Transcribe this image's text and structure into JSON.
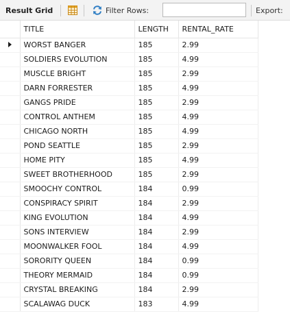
{
  "toolbar": {
    "result_grid_label": "Result Grid",
    "grid_icon": "grid-layout-icon",
    "refresh_icon": "refresh-icon",
    "filter_label": "Filter Rows:",
    "filter_value": "",
    "export_label": "Export:",
    "accent_color": "#e0a020"
  },
  "grid": {
    "columns": [
      "TITLE",
      "LENGTH",
      "RENTAL_RATE"
    ],
    "current_row_index": 0,
    "rows": [
      [
        "WORST BANGER",
        "185",
        "2.99"
      ],
      [
        "SOLDIERS EVOLUTION",
        "185",
        "4.99"
      ],
      [
        "MUSCLE BRIGHT",
        "185",
        "2.99"
      ],
      [
        "DARN FORRESTER",
        "185",
        "4.99"
      ],
      [
        "GANGS PRIDE",
        "185",
        "2.99"
      ],
      [
        "CONTROL ANTHEM",
        "185",
        "4.99"
      ],
      [
        "CHICAGO NORTH",
        "185",
        "4.99"
      ],
      [
        "POND SEATTLE",
        "185",
        "2.99"
      ],
      [
        "HOME PITY",
        "185",
        "4.99"
      ],
      [
        "SWEET BROTHERHOOD",
        "185",
        "2.99"
      ],
      [
        "SMOOCHY CONTROL",
        "184",
        "0.99"
      ],
      [
        "CONSPIRACY SPIRIT",
        "184",
        "2.99"
      ],
      [
        "KING EVOLUTION",
        "184",
        "4.99"
      ],
      [
        "SONS INTERVIEW",
        "184",
        "2.99"
      ],
      [
        "MOONWALKER FOOL",
        "184",
        "4.99"
      ],
      [
        "SORORITY QUEEN",
        "184",
        "0.99"
      ],
      [
        "THEORY MERMAID",
        "184",
        "0.99"
      ],
      [
        "CRYSTAL BREAKING",
        "184",
        "2.99"
      ],
      [
        "SCALAWAG DUCK",
        "183",
        "4.99"
      ]
    ]
  }
}
